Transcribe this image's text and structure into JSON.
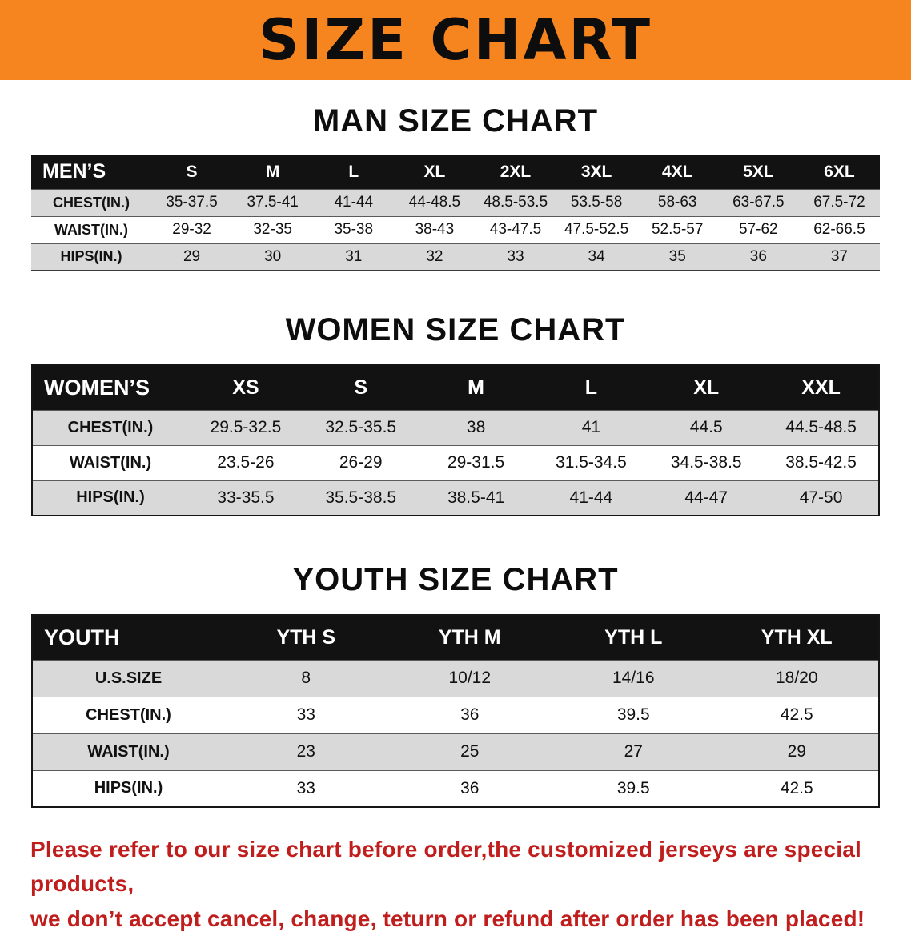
{
  "banner": {
    "title": "SIZE CHART"
  },
  "colors": {
    "banner_bg": "#f6851f",
    "footer_text": "#c01d1d",
    "table_header_bg": "#121212",
    "row_stripe_gray": "#d9d9d9"
  },
  "chart_data": [
    {
      "type": "table",
      "title": "MAN SIZE CHART",
      "corner": "MEN’S",
      "columns": [
        "S",
        "M",
        "L",
        "XL",
        "2XL",
        "3XL",
        "4XL",
        "5XL",
        "6XL"
      ],
      "rows": [
        {
          "label": "CHEST(IN.)",
          "values": [
            "35-37.5",
            "37.5-41",
            "41-44",
            "44-48.5",
            "48.5-53.5",
            "53.5-58",
            "58-63",
            "63-67.5",
            "67.5-72"
          ]
        },
        {
          "label": "WAIST(IN.)",
          "values": [
            "29-32",
            "32-35",
            "35-38",
            "38-43",
            "43-47.5",
            "47.5-52.5",
            "52.5-57",
            "57-62",
            "62-66.5"
          ]
        },
        {
          "label": "HIPS(IN.)",
          "values": [
            "29",
            "30",
            "31",
            "32",
            "33",
            "34",
            "35",
            "36",
            "37"
          ]
        }
      ]
    },
    {
      "type": "table",
      "title": "WOMEN SIZE CHART",
      "corner": "WOMEN’S",
      "columns": [
        "XS",
        "S",
        "M",
        "L",
        "XL",
        "XXL"
      ],
      "rows": [
        {
          "label": "CHEST(IN.)",
          "values": [
            "29.5-32.5",
            "32.5-35.5",
            "38",
            "41",
            "44.5",
            "44.5-48.5"
          ]
        },
        {
          "label": "WAIST(IN.)",
          "values": [
            "23.5-26",
            "26-29",
            "29-31.5",
            "31.5-34.5",
            "34.5-38.5",
            "38.5-42.5"
          ]
        },
        {
          "label": "HIPS(IN.)",
          "values": [
            "33-35.5",
            "35.5-38.5",
            "38.5-41",
            "41-44",
            "44-47",
            "47-50"
          ]
        }
      ]
    },
    {
      "type": "table",
      "title": "YOUTH SIZE CHART",
      "corner": "YOUTH",
      "columns": [
        "YTH S",
        "YTH M",
        "YTH L",
        "YTH XL"
      ],
      "rows": [
        {
          "label": "U.S.SIZE",
          "values": [
            "8",
            "10/12",
            "14/16",
            "18/20"
          ]
        },
        {
          "label": "CHEST(IN.)",
          "values": [
            "33",
            "36",
            "39.5",
            "42.5"
          ]
        },
        {
          "label": "WAIST(IN.)",
          "values": [
            "23",
            "25",
            "27",
            "29"
          ]
        },
        {
          "label": "HIPS(IN.)",
          "values": [
            "33",
            "36",
            "39.5",
            "42.5"
          ]
        }
      ]
    }
  ],
  "footer": {
    "line1": "Please refer to our size chart before order,the customized jerseys are special products,",
    "line2": "we don’t accept cancel, change, teturn or refund after order has been placed!"
  }
}
